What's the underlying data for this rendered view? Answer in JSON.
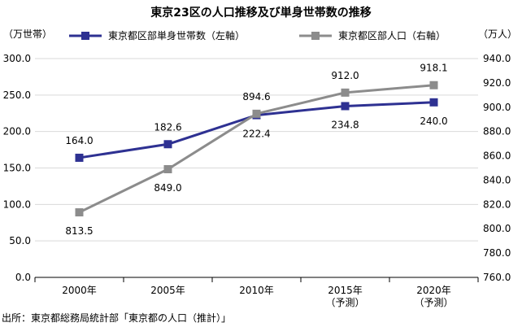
{
  "chart_data": {
    "type": "line",
    "title": "東京23区の人口推移及び単身世帯数の推移",
    "categories": [
      [
        "2000年"
      ],
      [
        "2005年"
      ],
      [
        "2010年"
      ],
      [
        "2015年",
        "（予測）"
      ],
      [
        "2020年",
        "（予測）"
      ]
    ],
    "left_axis": {
      "unit": "（万世帯）",
      "ylim": [
        0,
        300
      ],
      "ticks": [
        "0.0",
        "50.0",
        "100.0",
        "150.0",
        "200.0",
        "250.0",
        "300.0"
      ]
    },
    "right_axis": {
      "unit": "（万人）",
      "ylim": [
        760,
        940
      ],
      "ticks": [
        "760.0",
        "780.0",
        "800.0",
        "820.0",
        "840.0",
        "860.0",
        "880.0",
        "900.0",
        "920.0",
        "940.0"
      ]
    },
    "series": [
      {
        "name": "東京都区部単身世帯数（左軸）",
        "axis": "left",
        "color": "#2e3192",
        "values": [
          164.0,
          182.6,
          222.4,
          234.8,
          240.0
        ],
        "labels": [
          "164.0",
          "182.6",
          "222.4",
          "234.8",
          "240.0"
        ],
        "label_pos": [
          "above",
          "above",
          "below",
          "below",
          "below"
        ]
      },
      {
        "name": "東京都区部人口（右軸）",
        "axis": "right",
        "color": "#8c8c8c",
        "values": [
          813.5,
          849.0,
          894.6,
          912.0,
          918.1
        ],
        "labels": [
          "813.5",
          "849.0",
          "894.6",
          "912.0",
          "918.1"
        ],
        "label_pos": [
          "below",
          "below",
          "above",
          "above",
          "above"
        ]
      }
    ],
    "grid": true,
    "legend": "top"
  },
  "source": "出所：東京都総務局統計部「東京都の人口（推計）」"
}
